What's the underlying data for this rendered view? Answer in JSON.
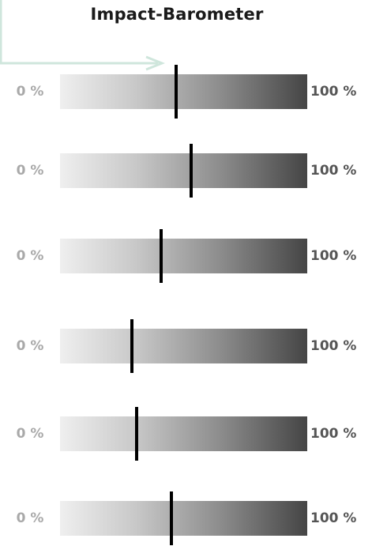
{
  "title": "Impact-Barometer",
  "scale": {
    "min_label": "0 %",
    "max_label": "100 %"
  },
  "colors": {
    "gradient_start": "#efefef",
    "gradient_end": "#454545",
    "marker": "#000000",
    "connector": "#cfe6dc",
    "min_label": "#a9a9a9",
    "max_label": "#555555"
  },
  "barometers": [
    {
      "value": 47
    },
    {
      "value": 53
    },
    {
      "value": 41
    },
    {
      "value": 29
    },
    {
      "value": 31
    },
    {
      "value": 45
    }
  ]
}
